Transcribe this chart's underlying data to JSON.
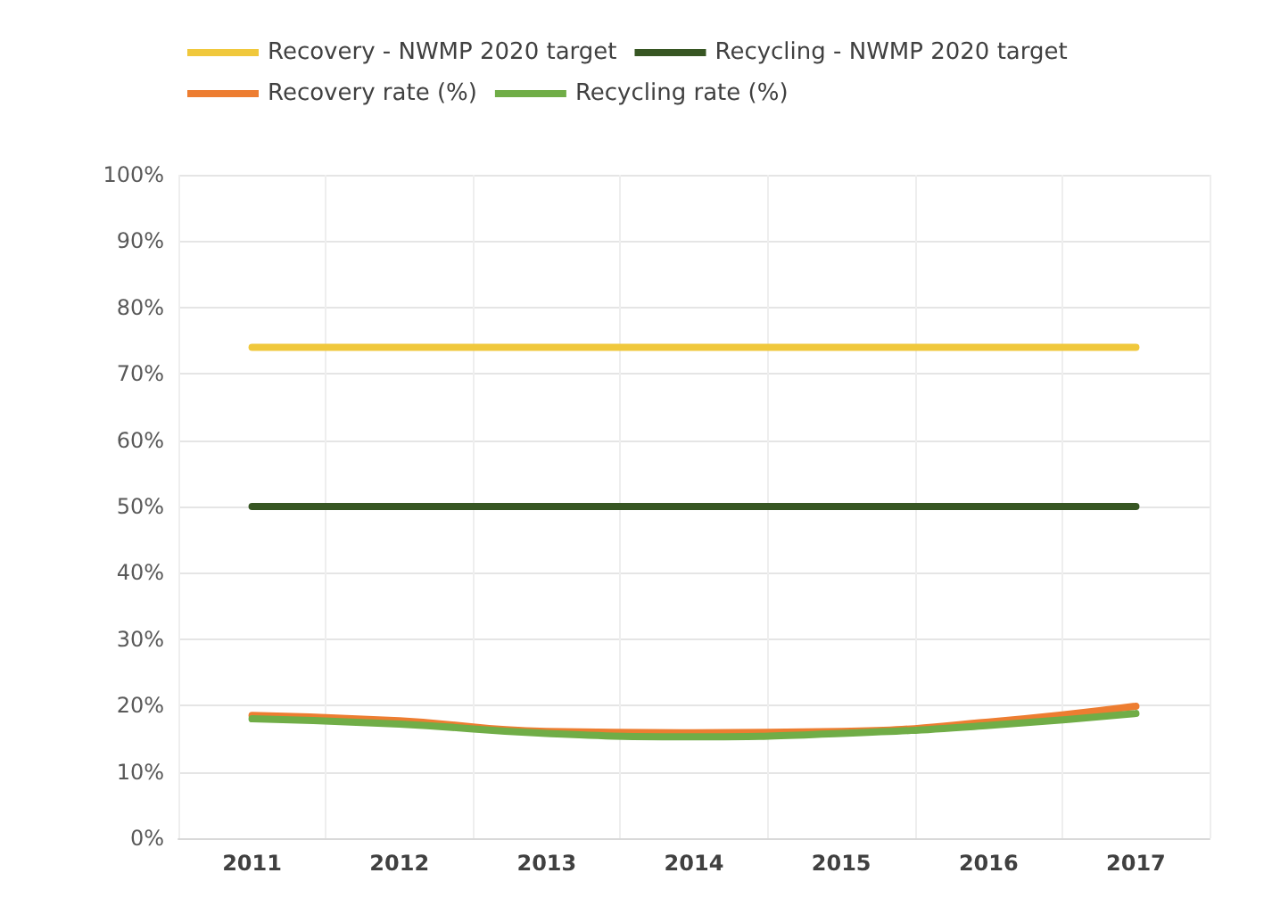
{
  "chart_data": {
    "type": "line",
    "categories": [
      "2011",
      "2012",
      "2013",
      "2014",
      "2015",
      "2016",
      "2017"
    ],
    "series": [
      {
        "name": "Recovery - NWMP 2020 target",
        "color": "#f0c83c",
        "values": [
          74,
          74,
          74,
          74,
          74,
          74,
          74
        ]
      },
      {
        "name": "Recycling - NWMP 2020 target",
        "color": "#375623",
        "values": [
          50,
          50,
          50,
          50,
          50,
          50,
          50
        ]
      },
      {
        "name": "Recovery rate (%)",
        "color": "#ed7d31",
        "values": [
          18.5,
          17.7,
          16.1,
          15.9,
          16.1,
          17.5,
          19.9
        ]
      },
      {
        "name": "Recycling rate (%)",
        "color": "#70ad47",
        "values": [
          18,
          17.2,
          15.8,
          15.3,
          15.8,
          17,
          18.8
        ]
      }
    ],
    "ylim": [
      0,
      100
    ],
    "yticks": [
      {
        "value": 0,
        "label": "0%"
      },
      {
        "value": 10,
        "label": "10%"
      },
      {
        "value": 20,
        "label": "20%"
      },
      {
        "value": 30,
        "label": "30%"
      },
      {
        "value": 40,
        "label": "40%"
      },
      {
        "value": 50,
        "label": "50%"
      },
      {
        "value": 60,
        "label": "60%"
      },
      {
        "value": 70,
        "label": "70%"
      },
      {
        "value": 80,
        "label": "80%"
      },
      {
        "value": 90,
        "label": "90%"
      },
      {
        "value": 100,
        "label": "100%"
      }
    ],
    "grid": true,
    "legend": "top",
    "marker": "none",
    "line_style": "solid"
  }
}
